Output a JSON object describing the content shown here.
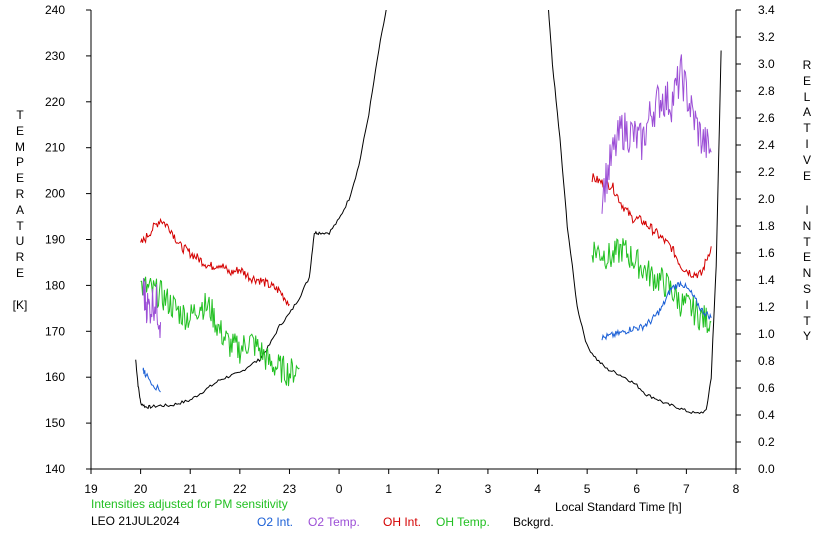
{
  "chart_data": {
    "type": "line",
    "left_axis": {
      "label_letters": [
        "T",
        "E",
        "M",
        "P",
        "E",
        "R",
        "A",
        "T",
        "U",
        "R",
        "E"
      ],
      "unit": "[K]",
      "range": [
        140,
        240
      ],
      "ticks": [
        "140",
        "150",
        "160",
        "170",
        "180",
        "190",
        "200",
        "210",
        "220",
        "230",
        "240"
      ]
    },
    "right_axis": {
      "label_word1": [
        "R",
        "E",
        "L",
        "A",
        "T",
        "I",
        "V",
        "E"
      ],
      "label_word2": [
        "I",
        "N",
        "T",
        "E",
        "N",
        "S",
        "I",
        "T",
        "Y"
      ],
      "range": [
        0.0,
        3.4
      ],
      "ticks": [
        "0.0",
        "0.2",
        "0.4",
        "0.6",
        "0.8",
        "1.0",
        "1.2",
        "1.4",
        "1.6",
        "1.8",
        "2.0",
        "2.2",
        "2.4",
        "2.6",
        "2.8",
        "3.0",
        "3.2",
        "3.4"
      ]
    },
    "x_axis": {
      "label": "Local Standard Time [h]",
      "range": [
        19,
        32
      ],
      "ticks": [
        "19",
        "20",
        "21",
        "22",
        "23",
        "0",
        "1",
        "2",
        "3",
        "4",
        "5",
        "6",
        "7",
        "8"
      ]
    },
    "notes": {
      "adjusted": "Intensities adjusted for PM sensitivity",
      "site_date": "LEO 21JUL2024"
    },
    "legend": [
      {
        "name": "O2 Int.",
        "color": "#1a5fd6"
      },
      {
        "name": "O2 Temp.",
        "color": "#9c4fd6"
      },
      {
        "name": "OH Int.",
        "color": "#d40000"
      },
      {
        "name": "OH Temp.",
        "color": "#22c022"
      },
      {
        "name": "Bckgrd.",
        "color": "#000000"
      }
    ],
    "series": [
      {
        "name": "Bckgrd.",
        "axis": "right",
        "color": "#000000",
        "x": [
          19.9,
          19.95,
          20.0,
          20.1,
          20.2,
          20.4,
          20.6,
          20.8,
          21.0,
          21.2,
          21.4,
          21.6,
          21.8,
          22.0,
          22.2,
          22.4,
          22.6,
          22.8,
          23.0,
          23.2,
          23.4,
          23.5,
          23.6,
          23.8,
          24.0,
          24.2,
          24.4,
          24.6,
          24.8,
          25.0
        ],
        "y": [
          0.81,
          0.62,
          0.49,
          0.46,
          0.46,
          0.47,
          0.47,
          0.49,
          0.51,
          0.56,
          0.61,
          0.66,
          0.69,
          0.71,
          0.77,
          0.81,
          0.92,
          1.06,
          1.15,
          1.27,
          1.42,
          1.75,
          1.75,
          1.75,
          1.85,
          2.0,
          2.25,
          2.63,
          3.1,
          3.5
        ]
      },
      {
        "name": "Bckgrd.",
        "axis": "right",
        "color": "#000000",
        "x": [
          28.2,
          28.3,
          28.45,
          28.6,
          28.8,
          29.0,
          29.2,
          29.4,
          29.6,
          29.8,
          30.0,
          30.2,
          30.4,
          30.6,
          30.8,
          31.0,
          31.2,
          31.4,
          31.5,
          31.6,
          31.7
        ],
        "y": [
          3.5,
          3.0,
          2.45,
          1.8,
          1.2,
          0.91,
          0.81,
          0.74,
          0.71,
          0.67,
          0.62,
          0.55,
          0.52,
          0.48,
          0.46,
          0.43,
          0.41,
          0.43,
          0.68,
          1.5,
          3.1
        ]
      },
      {
        "name": "OH Int.",
        "axis": "right",
        "color": "#d40000",
        "x": [
          20.0,
          20.2,
          20.4,
          20.6,
          20.8,
          21.0,
          21.2,
          21.4,
          21.6,
          21.8,
          22.0,
          22.2,
          22.4,
          22.6,
          22.8,
          23.0
        ],
        "y": [
          1.66,
          1.76,
          1.85,
          1.78,
          1.65,
          1.6,
          1.55,
          1.5,
          1.52,
          1.45,
          1.48,
          1.42,
          1.4,
          1.36,
          1.32,
          1.22
        ]
      },
      {
        "name": "OH Int.",
        "axis": "right",
        "color": "#d40000",
        "x": [
          29.1,
          29.3,
          29.5,
          29.7,
          29.9,
          30.1,
          30.3,
          30.5,
          30.7,
          30.9,
          31.1,
          31.3,
          31.5
        ],
        "y": [
          2.16,
          2.12,
          2.1,
          1.96,
          1.86,
          1.84,
          1.78,
          1.71,
          1.64,
          1.5,
          1.45,
          1.44,
          1.65
        ]
      },
      {
        "name": "OH Temp.",
        "axis": "left",
        "color": "#22c022",
        "x": [
          20.0,
          20.2,
          20.4,
          20.6,
          20.8,
          21.0,
          21.2,
          21.4,
          21.6,
          21.8,
          22.0,
          22.2,
          22.4,
          22.6,
          22.8,
          23.0,
          23.2
        ],
        "y": [
          180,
          179,
          178,
          176,
          174,
          173,
          176,
          175,
          170,
          167,
          166,
          168,
          166,
          163,
          162,
          161,
          162
        ]
      },
      {
        "name": "OH Temp.",
        "axis": "left",
        "color": "#22c022",
        "x": [
          29.1,
          29.3,
          29.5,
          29.7,
          29.9,
          30.1,
          30.3,
          30.5,
          30.7,
          30.9,
          31.1,
          31.3,
          31.5
        ],
        "y": [
          188,
          187,
          186,
          188,
          186,
          184,
          182,
          181,
          179,
          176,
          175,
          173,
          172
        ]
      },
      {
        "name": "O2 Temp.",
        "axis": "left",
        "color": "#9c4fd6",
        "x": [
          29.3,
          29.5,
          29.7,
          29.9,
          30.1,
          30.3,
          30.5,
          30.7,
          30.9,
          31.1,
          31.3,
          31.5
        ],
        "y": [
          200,
          208,
          214,
          213,
          211,
          218,
          221,
          220,
          226,
          218,
          212,
          209
        ]
      },
      {
        "name": "O2 Temp.",
        "axis": "left",
        "color": "#9c4fd6",
        "x": [
          20.05,
          20.15,
          20.3,
          20.4
        ],
        "y": [
          179,
          175,
          177,
          172
        ]
      },
      {
        "name": "O2 Int.",
        "axis": "right",
        "color": "#1a5fd6",
        "x": [
          29.3,
          29.5,
          29.7,
          29.9,
          30.1,
          30.3,
          30.5,
          30.7,
          30.9,
          31.1,
          31.3,
          31.5
        ],
        "y": [
          0.97,
          0.99,
          1.01,
          1.04,
          1.05,
          1.1,
          1.19,
          1.34,
          1.38,
          1.3,
          1.18,
          1.12
        ]
      },
      {
        "name": "O2 Int.",
        "axis": "right",
        "color": "#1a5fd6",
        "x": [
          20.05,
          20.1,
          20.4
        ],
        "y": [
          0.74,
          0.7,
          0.57
        ]
      }
    ]
  }
}
